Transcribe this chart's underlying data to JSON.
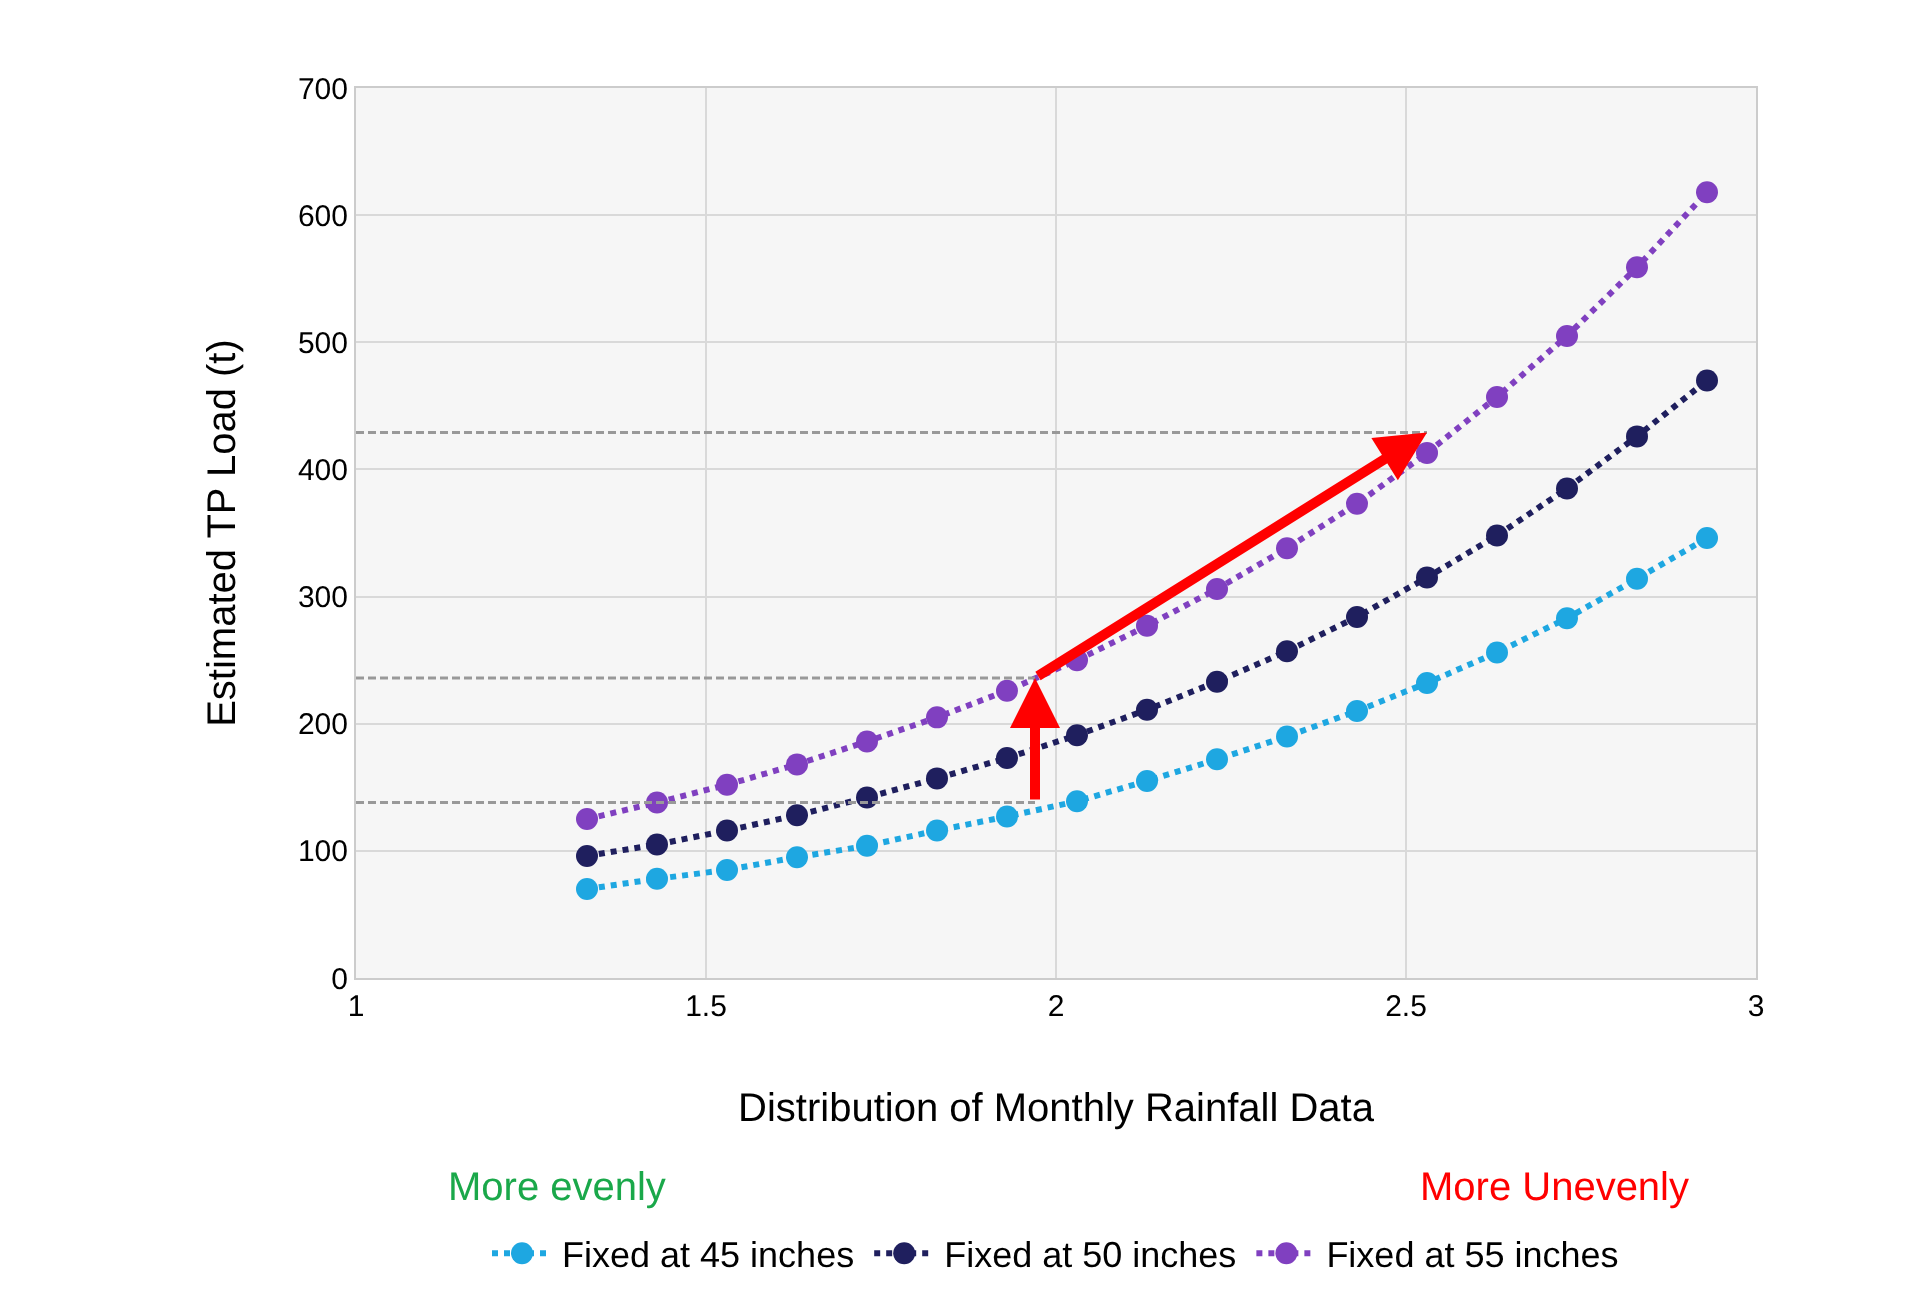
{
  "chart_data": {
    "type": "line",
    "xlabel": "Distribution of Monthly Rainfall Data",
    "ylabel": "Estimated TP Load (t)",
    "x": [
      1.33,
      1.43,
      1.53,
      1.63,
      1.73,
      1.83,
      1.93,
      2.03,
      2.13,
      2.23,
      2.33,
      2.43,
      2.53,
      2.63,
      2.73,
      2.83,
      2.93
    ],
    "series": [
      {
        "name": "Fixed at 45 inches",
        "color": "#1ea7e1",
        "values": [
          70,
          78,
          85,
          95,
          104,
          116,
          127,
          139,
          155,
          172,
          190,
          210,
          232,
          256,
          283,
          314,
          346
        ]
      },
      {
        "name": "Fixed at 50 inches",
        "color": "#1f1f5e",
        "values": [
          96,
          105,
          116,
          128,
          142,
          157,
          173,
          191,
          211,
          233,
          257,
          284,
          315,
          348,
          385,
          426,
          470
        ]
      },
      {
        "name": "Fixed at 55 inches",
        "color": "#8040c0",
        "values": [
          125,
          138,
          152,
          168,
          186,
          205,
          226,
          250,
          277,
          306,
          338,
          373,
          413,
          457,
          505,
          559,
          618
        ]
      },
      {
        "color": "#999999",
        "x": [
          1,
          1.97
        ],
        "values": [
          138,
          138
        ],
        "marker": "none",
        "line_style": "dashed"
      },
      {
        "color": "#999999",
        "x": [
          1,
          1.97
        ],
        "values": [
          236,
          236
        ],
        "marker": "none",
        "line_style": "dashed"
      },
      {
        "color": "#999999",
        "x": [
          1,
          2.53
        ],
        "values": [
          429,
          429
        ],
        "marker": "none",
        "line_style": "dashed"
      }
    ],
    "xlim": [
      1,
      3
    ],
    "xticks": [
      1,
      1.5,
      2,
      2.5,
      3
    ],
    "ylim": [
      0,
      700
    ],
    "yticks": [
      0,
      100,
      200,
      300,
      400,
      500,
      600,
      700
    ],
    "annotations": [
      "More evenly",
      "More Unevenly"
    ],
    "grid": true,
    "legend": "bottom",
    "marker": "circle",
    "line_style": "dotted"
  }
}
